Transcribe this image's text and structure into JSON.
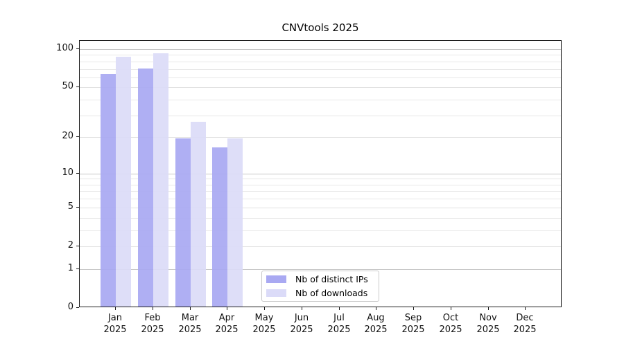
{
  "title": "CNVtools 2025",
  "chart_data": {
    "type": "bar",
    "title": "CNVtools 2025",
    "categories": [
      "Jan",
      "Feb",
      "Mar",
      "Apr",
      "May",
      "Jun",
      "Jul",
      "Aug",
      "Sep",
      "Oct",
      "Nov",
      "Dec"
    ],
    "year": "2025",
    "series": [
      {
        "name": "Nb of distinct IPs",
        "color": "#a9a9f2",
        "values": [
          62,
          69,
          19,
          16,
          0,
          0,
          0,
          0,
          0,
          0,
          0,
          0
        ]
      },
      {
        "name": "Nb of downloads",
        "color": "#dbdbf8",
        "values": [
          85,
          91,
          26,
          19,
          0,
          0,
          0,
          0,
          0,
          0,
          0,
          0
        ]
      }
    ],
    "y_axis": {
      "scale": "log1p",
      "ticks": [
        0,
        1,
        2,
        5,
        10,
        20,
        50,
        100
      ],
      "minor_gridlines": [
        3,
        4,
        6,
        7,
        8,
        9,
        30,
        40,
        60,
        70,
        80,
        90
      ],
      "decade_gridlines": [
        1,
        10,
        100
      ],
      "ylim": [
        0,
        100
      ]
    },
    "grid": true,
    "legend_position": "lower-center-left"
  },
  "colors": {
    "background": "#ffffff",
    "spine": "#1a1a1a",
    "grid_minor": "#e7e7e7",
    "grid_major": "#e0e0e0",
    "grid_decade": "#c6c6c6",
    "text": "#111111"
  }
}
